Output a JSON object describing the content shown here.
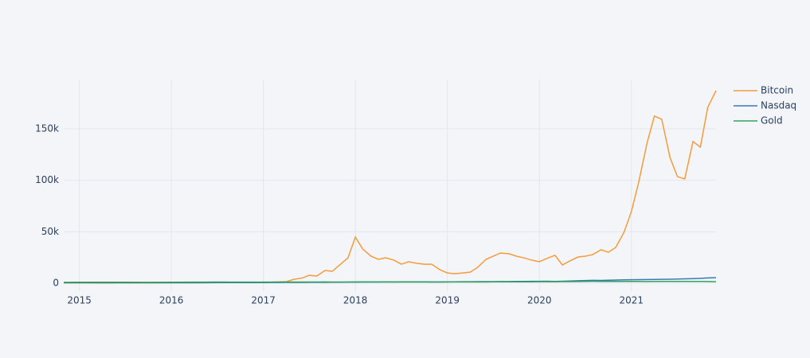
{
  "chart_data": {
    "type": "line",
    "x": [
      2014.83,
      2015,
      2015.25,
      2015.5,
      2015.75,
      2016,
      2016.25,
      2016.5,
      2016.75,
      2017,
      2017.08,
      2017.17,
      2017.25,
      2017.33,
      2017.42,
      2017.5,
      2017.58,
      2017.67,
      2017.75,
      2017.83,
      2017.92,
      2018,
      2018.08,
      2018.17,
      2018.25,
      2018.33,
      2018.42,
      2018.5,
      2018.58,
      2018.67,
      2018.75,
      2018.83,
      2018.92,
      2019,
      2019.08,
      2019.17,
      2019.25,
      2019.33,
      2019.42,
      2019.5,
      2019.58,
      2019.67,
      2019.75,
      2019.83,
      2019.92,
      2020,
      2020.08,
      2020.17,
      2020.25,
      2020.33,
      2020.42,
      2020.5,
      2020.58,
      2020.67,
      2020.75,
      2020.83,
      2020.92,
      2021,
      2021.08,
      2021.17,
      2021.25,
      2021.33,
      2021.42,
      2021.5,
      2021.58,
      2021.67,
      2021.75,
      2021.83,
      2021.92
    ],
    "series": [
      {
        "name": "Bitcoin",
        "color": "#f59b3a",
        "values": [
          350,
          300,
          250,
          280,
          300,
          420,
          450,
          650,
          700,
          1000,
          1100,
          1300,
          1600,
          3800,
          5000,
          7700,
          7000,
          12400,
          11600,
          17800,
          24700,
          44800,
          33200,
          26300,
          23200,
          24700,
          22400,
          18500,
          20900,
          19300,
          18500,
          18500,
          13100,
          10000,
          9300,
          10000,
          10800,
          15500,
          23200,
          26300,
          29400,
          28600,
          26300,
          24700,
          22400,
          20900,
          24000,
          27100,
          17800,
          21600,
          25500,
          26300,
          27800,
          32500,
          30100,
          34800,
          49500,
          69600,
          98200,
          136000,
          162300,
          159200,
          122100,
          103600,
          101300,
          137600,
          132200,
          170800,
          187000
        ]
      },
      {
        "name": "Nasdaq",
        "color": "#3a78b5",
        "values": [
          480,
          500,
          520,
          500,
          510,
          520,
          540,
          560,
          600,
          650,
          700,
          730,
          760,
          800,
          820,
          850,
          880,
          900,
          950,
          1000,
          1050,
          1100,
          1150,
          1200,
          1200,
          1250,
          1300,
          1350,
          1400,
          1400,
          1350,
          1300,
          1250,
          1300,
          1400,
          1450,
          1500,
          1550,
          1550,
          1600,
          1650,
          1700,
          1750,
          1800,
          1850,
          1900,
          1950,
          1800,
          2000,
          2200,
          2400,
          2600,
          2800,
          2700,
          2900,
          3100,
          3300,
          3400,
          3500,
          3600,
          3700,
          3800,
          3900,
          4100,
          4300,
          4500,
          4800,
          5100,
          5400
        ]
      },
      {
        "name": "Gold",
        "color": "#2ea35c",
        "values": [
          900,
          950,
          1000,
          950,
          900,
          950,
          1100,
          1150,
          1100,
          1050,
          1100,
          1150,
          1150,
          1200,
          1150,
          1200,
          1200,
          1250,
          1200,
          1200,
          1200,
          1250,
          1250,
          1250,
          1250,
          1250,
          1200,
          1150,
          1150,
          1150,
          1150,
          1150,
          1200,
          1250,
          1250,
          1250,
          1250,
          1250,
          1300,
          1350,
          1400,
          1400,
          1400,
          1400,
          1400,
          1450,
          1500,
          1500,
          1550,
          1600,
          1650,
          1750,
          1850,
          1800,
          1800,
          1750,
          1800,
          1800,
          1750,
          1700,
          1750,
          1800,
          1800,
          1750,
          1750,
          1750,
          1750,
          1700,
          1500
        ]
      }
    ],
    "xlim": [
      2014.83,
      2021.92
    ],
    "xticks": [
      2015,
      2016,
      2017,
      2018,
      2019,
      2020,
      2021
    ],
    "ylim": [
      -7700,
      197800
    ],
    "yticks": [
      0,
      {
        "value": 50000,
        "label": "50k"
      },
      {
        "value": 100000,
        "label": "100k"
      },
      {
        "value": 150000,
        "label": "150k"
      }
    ],
    "grid": true,
    "legend": "top-right"
  }
}
